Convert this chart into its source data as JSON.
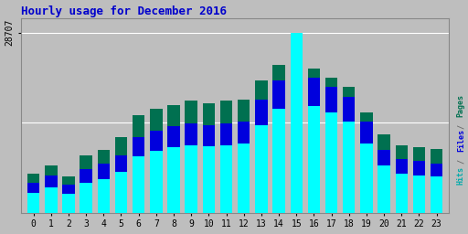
{
  "title": "Hourly usage for December 2016",
  "hours": [
    0,
    1,
    2,
    3,
    4,
    5,
    6,
    7,
    8,
    9,
    10,
    11,
    12,
    13,
    14,
    15,
    16,
    17,
    18,
    19,
    20,
    21,
    22,
    23
  ],
  "hits": [
    3200,
    4100,
    3000,
    4800,
    5300,
    6500,
    9000,
    9800,
    10500,
    10800,
    10600,
    10800,
    11000,
    14000,
    16500,
    28707,
    17000,
    16000,
    14500,
    11000,
    7500,
    6200,
    6000,
    5800
  ],
  "files": [
    4800,
    5900,
    4500,
    7000,
    7800,
    9200,
    12000,
    13000,
    13800,
    14200,
    14000,
    14200,
    14500,
    18000,
    21000,
    25500,
    21500,
    20000,
    18500,
    14500,
    10000,
    8500,
    8200,
    7900
  ],
  "pages": [
    6200,
    7500,
    5800,
    9200,
    10000,
    12000,
    15500,
    16500,
    17200,
    17800,
    17500,
    17800,
    18000,
    21000,
    23500,
    27500,
    23000,
    21500,
    20000,
    16000,
    12500,
    10800,
    10500,
    10100
  ],
  "hits_color": "#00ffff",
  "files_color": "#0000dd",
  "pages_color": "#007050",
  "bg_color": "#bebebe",
  "title_color": "#0000cc",
  "ymax": 28707,
  "bar_width": 0.7
}
